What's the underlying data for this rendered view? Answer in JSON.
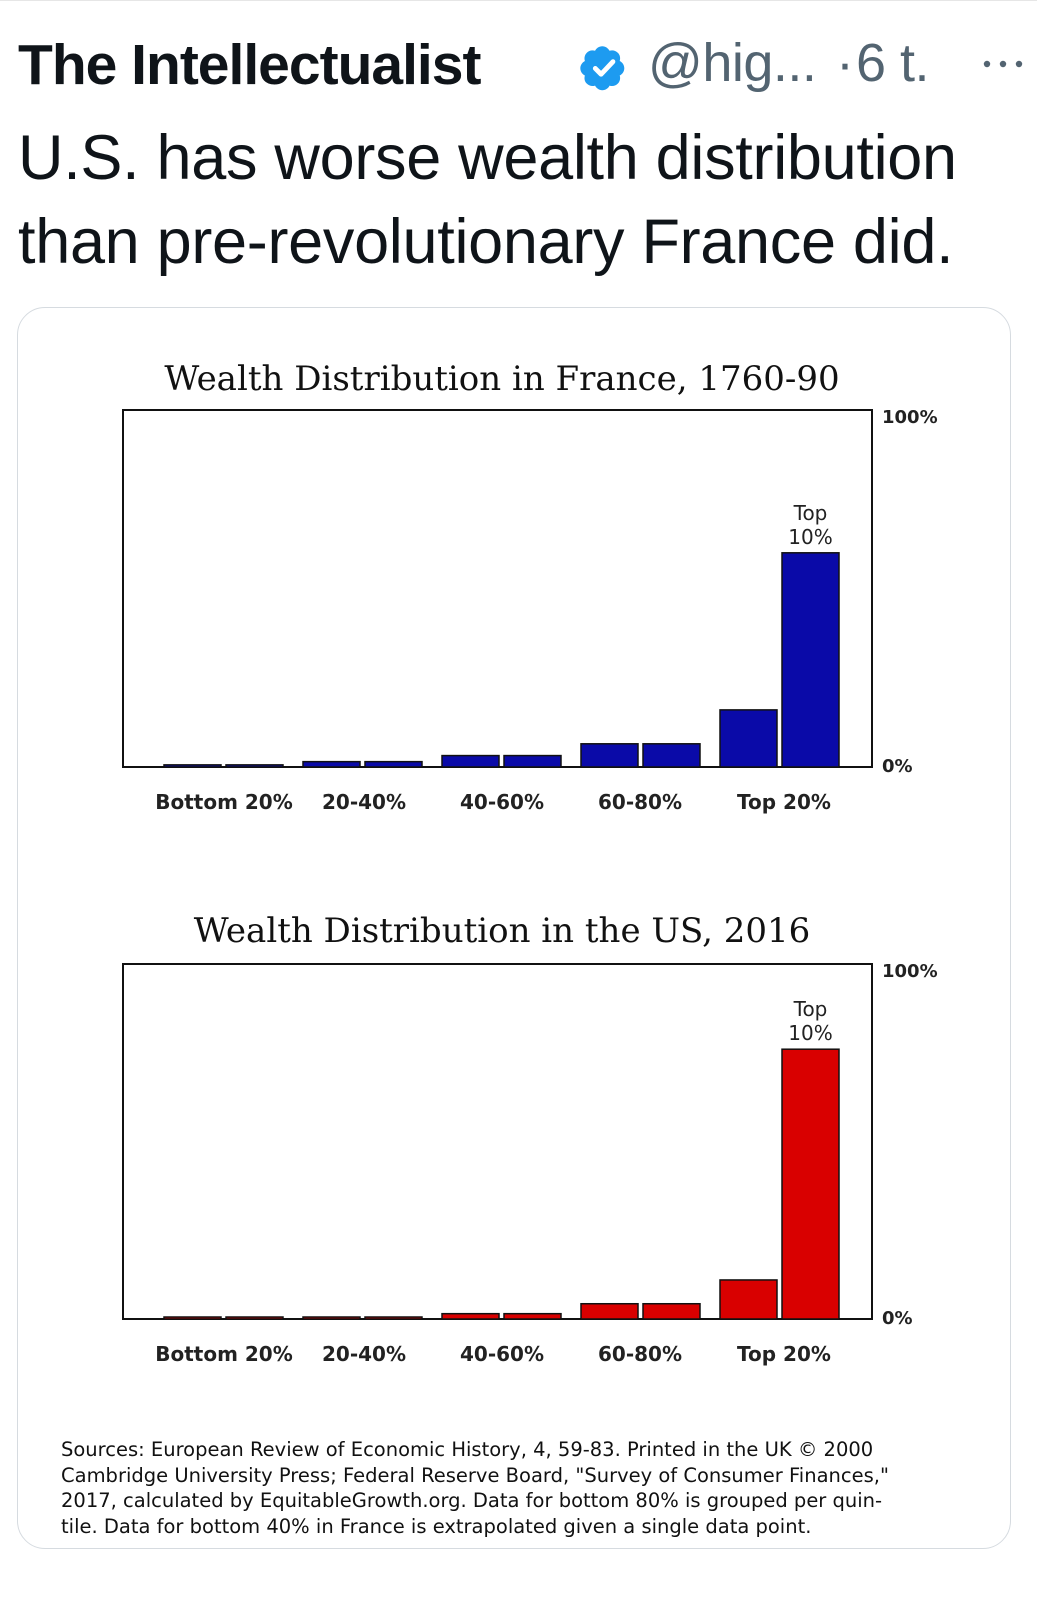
{
  "tweet": {
    "author_name": "The Intellectualist",
    "handle": "@hig...",
    "separator": "·",
    "time": "6 t.",
    "text_lines": [
      "U.S. has worse wealth distribution",
      "than pre-revolutionary France did."
    ]
  },
  "icons": {
    "verified": "verified-badge-icon",
    "more": "more-options-icon"
  },
  "colors": {
    "verified_blue": "#1d9bf0",
    "france_bar": "#0a0aa8",
    "us_bar": "#d90000"
  },
  "chart_data": [
    {
      "type": "bar",
      "title": "Wealth Distribution in France, 1760-90",
      "groups": [
        "Bottom 20%",
        "20-40%",
        "40-60%",
        "60-80%",
        "Top 20%"
      ],
      "values": [
        0.6,
        0.6,
        1.5,
        1.5,
        3.2,
        3.2,
        6.5,
        6.5,
        16,
        60
      ],
      "ylim": [
        0,
        100
      ],
      "ytick_labels": [
        "100%",
        "0%"
      ],
      "annotation": [
        "Top",
        "10%"
      ],
      "grid": false,
      "legend": "none"
    },
    {
      "type": "bar",
      "title": "Wealth Distribution in the US, 2016",
      "groups": [
        "Bottom 20%",
        "20-40%",
        "40-60%",
        "60-80%",
        "Top 20%"
      ],
      "values": [
        0.2,
        0.2,
        0.3,
        0.3,
        1.5,
        1.5,
        4.3,
        4.3,
        11,
        76
      ],
      "ylim": [
        0,
        100
      ],
      "ytick_labels": [
        "100%",
        "0%"
      ],
      "annotation": [
        "Top",
        "10%"
      ],
      "grid": false,
      "legend": "none"
    }
  ],
  "sources_lines": [
    "Sources: European Review of Economic History, 4, 59-83. Printed in the UK © 2000",
    "Cambridge University Press; Federal Reserve Board, \"Survey of Consumer Finances,\"",
    "2017, calculated by EquitableGrowth.org. Data for bottom 80% is grouped per quin-",
    "tile. Data for bottom 40% in France is extrapolated given a single data point."
  ]
}
